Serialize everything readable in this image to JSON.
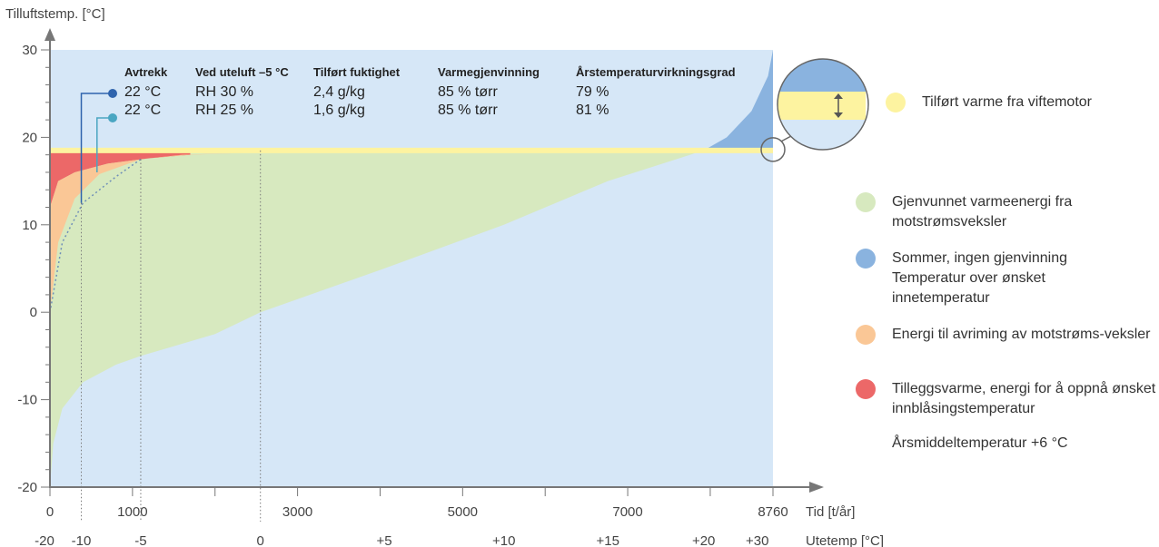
{
  "chart_data": {
    "type": "area",
    "ylabel": "Tilluftstemp. [°C]",
    "xlabel": "Tid [t/år]",
    "x2label": "Utetemp [°C]",
    "xlim": [
      0,
      8760
    ],
    "ylim": [
      -20,
      30
    ],
    "y_ticks": [
      "30",
      "20",
      "10",
      "0",
      "-10",
      "-20"
    ],
    "x_ticks": [
      {
        "value": 0,
        "label": "0"
      },
      {
        "value": 1000,
        "label": "1000"
      },
      {
        "value": 3000,
        "label": "3000"
      },
      {
        "value": 5000,
        "label": "5000"
      },
      {
        "value": 7000,
        "label": "7000"
      },
      {
        "value": 8760,
        "label": "8760"
      }
    ],
    "x2_ticks": [
      {
        "value": 0,
        "label": "-20"
      },
      {
        "value": 380,
        "label": "-10"
      },
      {
        "value": 1100,
        "label": "-5"
      },
      {
        "value": 2550,
        "label": "0"
      },
      {
        "value": 4050,
        "label": "+5"
      },
      {
        "value": 5500,
        "label": "+10"
      },
      {
        "value": 6760,
        "label": "+15"
      },
      {
        "value": 7920,
        "label": "+20"
      },
      {
        "value": 8570,
        "label": "+30"
      }
    ],
    "supply_temp": 18.5,
    "outdoor_temp_curve": [
      {
        "x": 0,
        "y": -20
      },
      {
        "x": 40,
        "y": -15
      },
      {
        "x": 150,
        "y": -11
      },
      {
        "x": 400,
        "y": -8
      },
      {
        "x": 800,
        "y": -6
      },
      {
        "x": 1100,
        "y": -5
      },
      {
        "x": 2000,
        "y": -2.5
      },
      {
        "x": 2550,
        "y": 0
      },
      {
        "x": 4050,
        "y": 5
      },
      {
        "x": 5500,
        "y": 10
      },
      {
        "x": 6760,
        "y": 15
      },
      {
        "x": 7920,
        "y": 18.5
      }
    ],
    "summer_curve": [
      {
        "x": 7920,
        "y": 18.5
      },
      {
        "x": 8200,
        "y": 20
      },
      {
        "x": 8500,
        "y": 23
      },
      {
        "x": 8700,
        "y": 27
      },
      {
        "x": 8760,
        "y": 30
      }
    ],
    "recovery_top_curve": [
      {
        "x": 0,
        "y": 0
      },
      {
        "x": 100,
        "y": 8
      },
      {
        "x": 300,
        "y": 13
      },
      {
        "x": 600,
        "y": 15.8
      },
      {
        "x": 1100,
        "y": 17.5
      },
      {
        "x": 1600,
        "y": 18
      },
      {
        "x": 2550,
        "y": 18.3
      }
    ],
    "defrost_top_curve": [
      {
        "x": 0,
        "y": 12
      },
      {
        "x": 100,
        "y": 15
      },
      {
        "x": 300,
        "y": 16
      },
      {
        "x": 700,
        "y": 17
      },
      {
        "x": 1200,
        "y": 17.6
      },
      {
        "x": 1700,
        "y": 18
      }
    ],
    "dotted_curve": [
      {
        "x": 0,
        "y": 0
      },
      {
        "x": 150,
        "y": 8
      },
      {
        "x": 400,
        "y": 12.5
      },
      {
        "x": 800,
        "y": 15.5
      },
      {
        "x": 1100,
        "y": 17.5
      }
    ],
    "markers": [
      {
        "x": 380,
        "y": 12.5
      },
      {
        "x": 570,
        "y": 16
      }
    ],
    "table": {
      "headers": [
        "Avtrekk",
        "Ved uteluft –5 °C",
        "Tilført fuktighet",
        "Varmegjenvinning",
        "Årstemperaturvirkningsgrad"
      ],
      "rows": [
        [
          "22 °C",
          "RH 30 %",
          "2,4 g/kg",
          "85 % tørr",
          "79 %"
        ],
        [
          "22 °C",
          "RH 25 %",
          "1,6 g/kg",
          "85 % tørr",
          "81 %"
        ]
      ]
    },
    "legend": [
      {
        "label": "Tilført varme fra viftemotor",
        "color": "#fdf3a0"
      },
      {
        "label": "Gjenvunnet varmeenergi fra motstrømsveksler",
        "color": "#d7e9bf"
      },
      {
        "label": "Sommer, ingen gjenvinning Temperatur over ønsket innetemperatur",
        "color": "#8ab3df"
      },
      {
        "label": "Energi til avriming av motstrøms-veksler",
        "color": "#fac796"
      },
      {
        "label": "Tilleggsvarme, energi for å oppnå ønsket innblåsingstemperatur",
        "color": "#ec6868"
      }
    ],
    "note": "Årsmiddeltemperatur +6 °C",
    "colors": {
      "background": "#d6e7f7",
      "recovery": "#d7e9bf",
      "summer": "#8ab3df",
      "fan": "#fdf3a0",
      "defrost": "#fac796",
      "extra": "#ec6868",
      "marker1": "#2f64ad",
      "marker2": "#4aa6c2",
      "axis": "#777777"
    }
  }
}
